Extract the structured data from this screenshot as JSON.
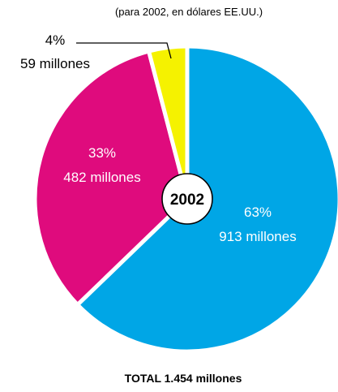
{
  "chart_data": {
    "type": "pie",
    "subtitle": "(para 2002, en dólares EE.UU.)",
    "center_label": "2002",
    "total_label": "TOTAL 1.454 millones",
    "slices": [
      {
        "percent_label": "63%",
        "amount_label": "913 millones",
        "value": 913,
        "color": "#00a6e6"
      },
      {
        "percent_label": "33%",
        "amount_label": "482 millones",
        "value": 482,
        "color": "#df0b7d"
      },
      {
        "percent_label": "4%",
        "amount_label": "59 millones",
        "value": 59,
        "color": "#f5f200"
      }
    ]
  }
}
